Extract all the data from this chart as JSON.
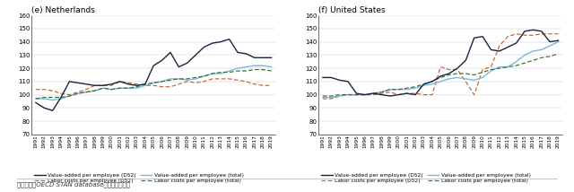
{
  "years": [
    1991,
    1992,
    1993,
    1994,
    1995,
    1996,
    1997,
    1998,
    1999,
    2000,
    2001,
    2002,
    2003,
    2004,
    2005,
    2006,
    2007,
    2008,
    2009,
    2010,
    2011,
    2012,
    2013,
    2014,
    2015,
    2016,
    2017,
    2018,
    2019
  ],
  "NL_va_d52": [
    94,
    90,
    88,
    98,
    110,
    109,
    108,
    107,
    107,
    108,
    110,
    108,
    107,
    108,
    122,
    126,
    132,
    121,
    124,
    130,
    136,
    139,
    140,
    142,
    132,
    131,
    128,
    128,
    128
  ],
  "NL_lc_d52": [
    104,
    104,
    103,
    101,
    100,
    102,
    104,
    107,
    107,
    107,
    110,
    109,
    108,
    107,
    107,
    106,
    106,
    108,
    110,
    109,
    110,
    112,
    112,
    112,
    111,
    110,
    108,
    107,
    107
  ],
  "NL_va_tot": [
    97,
    97,
    96,
    97,
    99,
    101,
    102,
    103,
    105,
    104,
    105,
    105,
    105,
    107,
    109,
    110,
    112,
    112,
    111,
    112,
    114,
    116,
    116,
    118,
    120,
    121,
    122,
    122,
    121
  ],
  "NL_lc_tot": [
    97,
    98,
    98,
    98,
    99,
    101,
    102,
    103,
    105,
    104,
    105,
    105,
    106,
    108,
    109,
    110,
    111,
    112,
    112,
    113,
    114,
    116,
    117,
    117,
    118,
    118,
    119,
    119,
    118
  ],
  "US_va_d52": [
    113,
    113,
    111,
    110,
    101,
    100,
    101,
    100,
    99,
    100,
    101,
    100,
    108,
    110,
    114,
    116,
    120,
    126,
    143,
    144,
    134,
    133,
    136,
    139,
    148,
    149,
    148,
    140,
    141
  ],
  "US_lc_d52": [
    97,
    97,
    99,
    100,
    100,
    100,
    100,
    101,
    102,
    100,
    101,
    101,
    100,
    100,
    121,
    119,
    119,
    110,
    100,
    119,
    121,
    137,
    144,
    146,
    145,
    145,
    146,
    146,
    146
  ],
  "US_va_tot": [
    98,
    98,
    99,
    100,
    100,
    100,
    101,
    102,
    104,
    104,
    104,
    105,
    107,
    108,
    110,
    112,
    113,
    112,
    111,
    113,
    118,
    121,
    121,
    125,
    130,
    133,
    134,
    137,
    140
  ],
  "US_lc_tot": [
    99,
    99,
    100,
    100,
    100,
    100,
    101,
    102,
    104,
    104,
    105,
    106,
    108,
    110,
    113,
    115,
    116,
    116,
    115,
    117,
    119,
    120,
    121,
    122,
    124,
    126,
    128,
    129,
    131
  ],
  "title_NL": "(e) Netherlands",
  "title_US": "(f) United States",
  "ylim": [
    70,
    160
  ],
  "yticks": [
    70,
    80,
    90,
    100,
    110,
    120,
    130,
    140,
    150,
    160
  ],
  "color_va_d52": "#1c2340",
  "color_lc_d52": "#c8622b",
  "color_va_tot": "#7ab8d8",
  "color_lc_tot": "#3a6b35",
  "legend_labels": [
    "Value-added per employee (D52)",
    "Labor costs per employee (D52)",
    "Value-added per employee (total)",
    "Labor costs per employee (total)"
  ],
  "footnote": "数据来源：OECD STAN database，国泰君安国际"
}
